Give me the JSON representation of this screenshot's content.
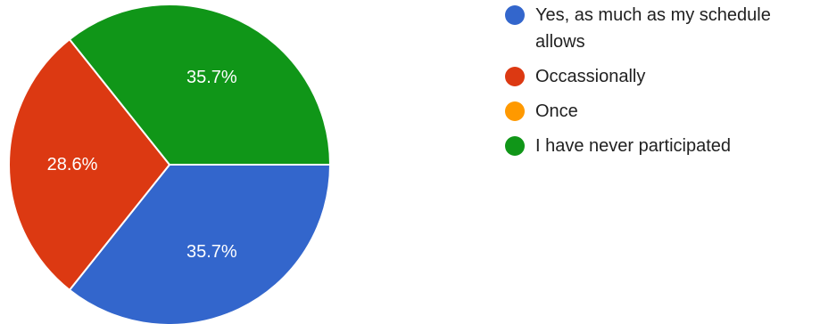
{
  "chart_data": {
    "type": "pie",
    "categories": [
      "Yes, as much as my schedule allows",
      "Occassionally",
      "Once",
      "I have never participated"
    ],
    "values": [
      35.7,
      28.6,
      0,
      35.7
    ],
    "value_labels": [
      "35.7%",
      "28.6%",
      "",
      "35.7%"
    ],
    "colors": [
      "#3366cc",
      "#dc3912",
      "#ff9900",
      "#109618"
    ],
    "legend_position": "right"
  }
}
